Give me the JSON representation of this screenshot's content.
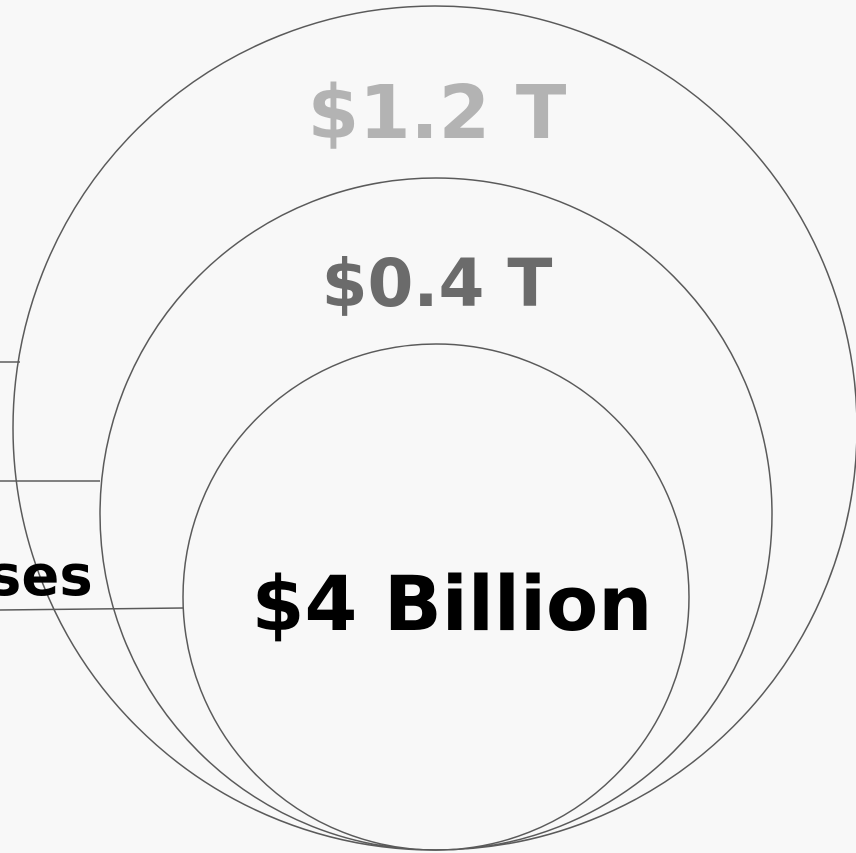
{
  "diagram": {
    "outer_value": "$1.2 T",
    "middle_value": "$0.4 T",
    "inner_value": "$4 Billion",
    "side_label_fragment": "ses",
    "colors": {
      "background": "#f8f8f8",
      "outline": "#5a5a5a",
      "outer_text": "#b3b3b3",
      "middle_text": "#6b6b6b",
      "inner_text": "#000000"
    }
  }
}
